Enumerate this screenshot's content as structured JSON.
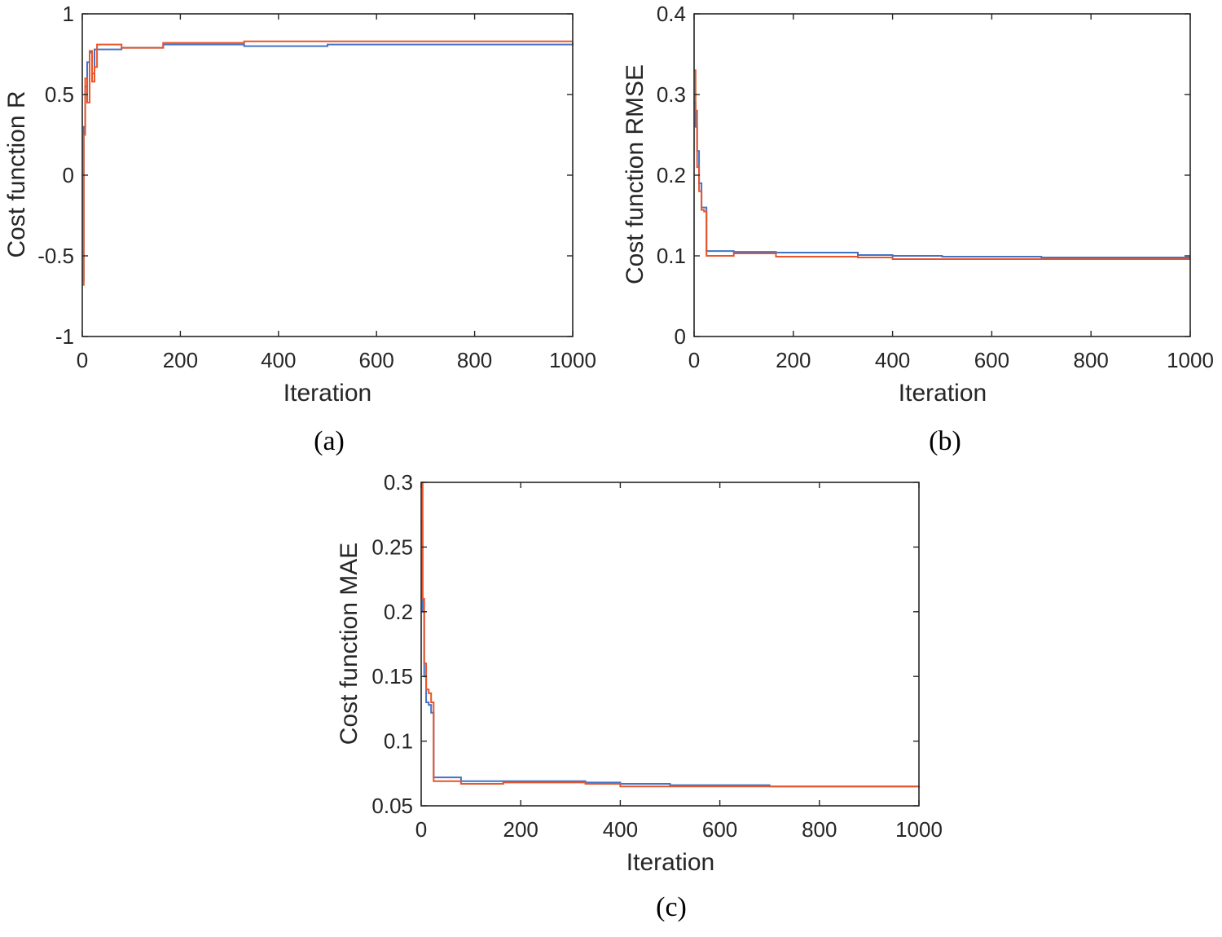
{
  "colors": {
    "series_1": "#4472C4",
    "series_2": "#E8552A",
    "axis": "#262626"
  },
  "chart_data": [
    {
      "type": "line",
      "caption": "(a)",
      "xlabel": "Iteration",
      "ylabel": "Cost function R",
      "xlim": [
        0,
        1000
      ],
      "ylim": [
        -1,
        1
      ],
      "xticks": [
        0,
        200,
        400,
        600,
        800,
        1000
      ],
      "xtick_labels": [
        "0",
        "200",
        "400",
        "600",
        "800",
        "1000"
      ],
      "yticks": [
        -1,
        -0.5,
        0,
        0.5,
        1
      ],
      "ytick_labels": [
        "-1",
        "-0.5",
        "0",
        "0.5",
        "1"
      ],
      "grid": false,
      "series": [
        {
          "color": "#4472C4",
          "x": [
            0,
            3,
            6,
            10,
            15,
            20,
            25,
            30,
            80,
            165,
            330,
            500,
            700,
            1000
          ],
          "y": [
            -0.65,
            0.3,
            0.55,
            0.7,
            0.76,
            0.63,
            0.78,
            0.78,
            0.79,
            0.81,
            0.8,
            0.81,
            0.81,
            0.82
          ]
        },
        {
          "color": "#E8552A",
          "x": [
            0,
            3,
            6,
            10,
            15,
            20,
            25,
            30,
            80,
            165,
            330,
            500,
            700,
            1000
          ],
          "y": [
            -0.68,
            0.25,
            0.6,
            0.45,
            0.77,
            0.58,
            0.67,
            0.81,
            0.79,
            0.82,
            0.83,
            0.83,
            0.83,
            0.83
          ]
        }
      ]
    },
    {
      "type": "line",
      "caption": "(b)",
      "xlabel": "Iteration",
      "ylabel": "Cost function RMSE",
      "xlim": [
        0,
        1000
      ],
      "ylim": [
        0,
        0.4
      ],
      "xticks": [
        0,
        200,
        400,
        600,
        800,
        1000
      ],
      "xtick_labels": [
        "0",
        "200",
        "400",
        "600",
        "800",
        "1000"
      ],
      "yticks": [
        0,
        0.1,
        0.2,
        0.3,
        0.4
      ],
      "ytick_labels": [
        "0",
        "0.1",
        "0.2",
        "0.3",
        "0.4"
      ],
      "grid": false,
      "series": [
        {
          "color": "#4472C4",
          "x": [
            0,
            3,
            6,
            10,
            15,
            20,
            25,
            80,
            165,
            330,
            400,
            500,
            700,
            1000
          ],
          "y": [
            0.29,
            0.26,
            0.23,
            0.19,
            0.16,
            0.16,
            0.106,
            0.105,
            0.104,
            0.101,
            0.1,
            0.099,
            0.098,
            0.098
          ]
        },
        {
          "color": "#E8552A",
          "x": [
            0,
            3,
            6,
            10,
            15,
            20,
            25,
            80,
            165,
            330,
            400,
            500,
            700,
            1000
          ],
          "y": [
            0.33,
            0.28,
            0.21,
            0.18,
            0.157,
            0.155,
            0.1,
            0.103,
            0.099,
            0.098,
            0.096,
            0.096,
            0.096,
            0.096
          ]
        }
      ]
    },
    {
      "type": "line",
      "caption": "(c)",
      "xlabel": "Iteration",
      "ylabel": "Cost function MAE",
      "xlim": [
        0,
        1000
      ],
      "ylim": [
        0.05,
        0.3
      ],
      "xticks": [
        0,
        200,
        400,
        600,
        800,
        1000
      ],
      "xtick_labels": [
        "0",
        "200",
        "400",
        "600",
        "800",
        "1000"
      ],
      "yticks": [
        0.05,
        0.1,
        0.15,
        0.2,
        0.25,
        0.3
      ],
      "ytick_labels": [
        "0.05",
        "0.1",
        "0.15",
        "0.2",
        "0.25",
        "0.3"
      ],
      "grid": false,
      "series": [
        {
          "color": "#4472C4",
          "x": [
            0,
            3,
            6,
            10,
            15,
            20,
            25,
            80,
            165,
            330,
            400,
            500,
            700,
            1000
          ],
          "y": [
            0.27,
            0.2,
            0.15,
            0.13,
            0.128,
            0.122,
            0.072,
            0.069,
            0.069,
            0.068,
            0.067,
            0.066,
            0.065,
            0.065
          ]
        },
        {
          "color": "#E8552A",
          "x": [
            0,
            3,
            6,
            10,
            15,
            20,
            25,
            80,
            165,
            330,
            400,
            500,
            700,
            1000
          ],
          "y": [
            0.3,
            0.21,
            0.16,
            0.14,
            0.137,
            0.13,
            0.069,
            0.067,
            0.068,
            0.067,
            0.065,
            0.065,
            0.065,
            0.064
          ]
        }
      ]
    }
  ]
}
